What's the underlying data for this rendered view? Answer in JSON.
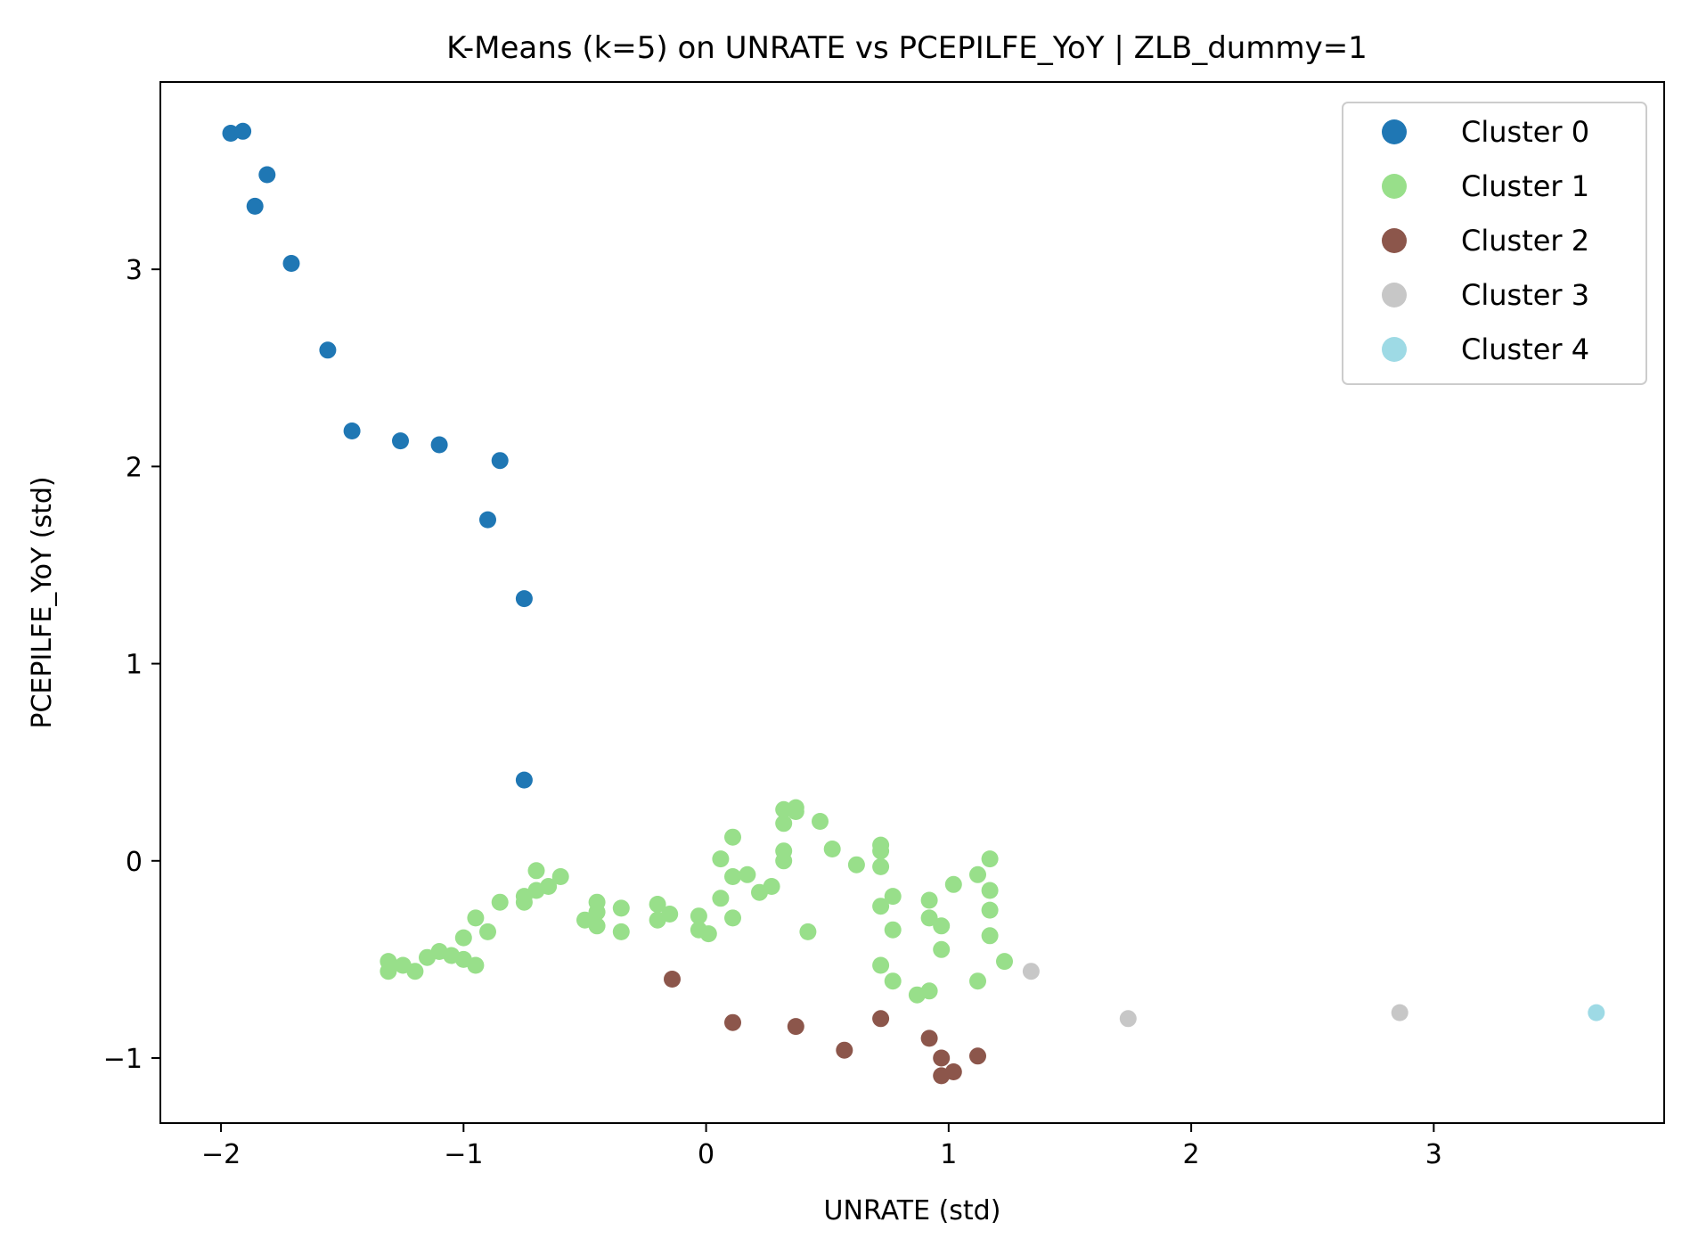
{
  "chart_data": {
    "type": "scatter",
    "title": "K-Means (k=5) on UNRATE vs PCEPILFE_YoY | ZLB_dummy=1",
    "xlabel": "UNRATE (std)",
    "ylabel": "PCEPILFE_YoY (std)",
    "xlim": [
      -2.25,
      3.95
    ],
    "ylim": [
      -1.33,
      3.95
    ],
    "xticks": [
      -2,
      -1,
      0,
      1,
      2,
      3
    ],
    "xtick_labels": [
      "−2",
      "−1",
      "0",
      "1",
      "2",
      "3"
    ],
    "yticks": [
      -1,
      0,
      1,
      2,
      3
    ],
    "ytick_labels": [
      "−1",
      "0",
      "1",
      "2",
      "3"
    ],
    "grid": false,
    "legend_position": "top-right",
    "series": [
      {
        "name": "Cluster 0",
        "color": "#1f77b4",
        "points": [
          [
            -1.96,
            3.69
          ],
          [
            -1.91,
            3.7
          ],
          [
            -1.81,
            3.48
          ],
          [
            -1.86,
            3.32
          ],
          [
            -1.71,
            3.03
          ],
          [
            -1.56,
            2.59
          ],
          [
            -1.46,
            2.18
          ],
          [
            -1.26,
            2.13
          ],
          [
            -1.1,
            2.11
          ],
          [
            -0.85,
            2.03
          ],
          [
            -0.9,
            1.73
          ],
          [
            -0.75,
            1.33
          ],
          [
            -0.75,
            0.41
          ]
        ]
      },
      {
        "name": "Cluster 1",
        "color": "#98df8a",
        "points": [
          [
            -1.31,
            -0.51
          ],
          [
            -1.31,
            -0.56
          ],
          [
            -1.25,
            -0.53
          ],
          [
            -1.2,
            -0.56
          ],
          [
            -1.15,
            -0.49
          ],
          [
            -1.1,
            -0.46
          ],
          [
            -1.05,
            -0.48
          ],
          [
            -1.0,
            -0.5
          ],
          [
            -0.95,
            -0.53
          ],
          [
            -1.0,
            -0.39
          ],
          [
            -0.95,
            -0.29
          ],
          [
            -0.9,
            -0.36
          ],
          [
            -0.85,
            -0.21
          ],
          [
            -0.75,
            -0.21
          ],
          [
            -0.75,
            -0.18
          ],
          [
            -0.7,
            -0.15
          ],
          [
            -0.7,
            -0.05
          ],
          [
            -0.65,
            -0.13
          ],
          [
            -0.6,
            -0.08
          ],
          [
            -0.5,
            -0.3
          ],
          [
            -0.45,
            -0.21
          ],
          [
            -0.45,
            -0.26
          ],
          [
            -0.45,
            -0.33
          ],
          [
            -0.35,
            -0.24
          ],
          [
            -0.35,
            -0.36
          ],
          [
            -0.2,
            -0.22
          ],
          [
            -0.2,
            -0.3
          ],
          [
            -0.15,
            -0.27
          ],
          [
            -0.03,
            -0.28
          ],
          [
            -0.03,
            -0.35
          ],
          [
            0.01,
            -0.37
          ],
          [
            0.06,
            0.01
          ],
          [
            0.06,
            -0.19
          ],
          [
            0.11,
            0.12
          ],
          [
            0.11,
            -0.08
          ],
          [
            0.11,
            -0.29
          ],
          [
            0.17,
            -0.07
          ],
          [
            0.22,
            -0.16
          ],
          [
            0.27,
            -0.13
          ],
          [
            0.32,
            0.26
          ],
          [
            0.32,
            0.19
          ],
          [
            0.32,
            0.05
          ],
          [
            0.32,
            0.0
          ],
          [
            0.37,
            0.27
          ],
          [
            0.37,
            0.25
          ],
          [
            0.42,
            -0.36
          ],
          [
            0.47,
            0.2
          ],
          [
            0.52,
            0.06
          ],
          [
            0.62,
            -0.02
          ],
          [
            0.72,
            0.08
          ],
          [
            0.72,
            0.05
          ],
          [
            0.72,
            -0.03
          ],
          [
            0.72,
            -0.23
          ],
          [
            0.72,
            -0.53
          ],
          [
            0.77,
            -0.18
          ],
          [
            0.77,
            -0.35
          ],
          [
            0.77,
            -0.61
          ],
          [
            0.87,
            -0.68
          ],
          [
            0.92,
            -0.66
          ],
          [
            0.92,
            -0.2
          ],
          [
            0.92,
            -0.29
          ],
          [
            0.97,
            -0.33
          ],
          [
            0.97,
            -0.45
          ],
          [
            1.02,
            -0.12
          ],
          [
            1.12,
            -0.07
          ],
          [
            1.12,
            -0.61
          ],
          [
            1.17,
            0.01
          ],
          [
            1.17,
            -0.15
          ],
          [
            1.17,
            -0.25
          ],
          [
            1.17,
            -0.38
          ],
          [
            1.23,
            -0.51
          ]
        ]
      },
      {
        "name": "Cluster 2",
        "color": "#8c564b",
        "points": [
          [
            -0.14,
            -0.6
          ],
          [
            0.11,
            -0.82
          ],
          [
            0.37,
            -0.84
          ],
          [
            0.57,
            -0.96
          ],
          [
            0.72,
            -0.8
          ],
          [
            0.92,
            -0.9
          ],
          [
            0.97,
            -1.0
          ],
          [
            0.97,
            -1.09
          ],
          [
            1.02,
            -1.07
          ],
          [
            1.12,
            -0.99
          ]
        ]
      },
      {
        "name": "Cluster 3",
        "color": "#c7c7c7",
        "points": [
          [
            1.34,
            -0.56
          ],
          [
            1.74,
            -0.8
          ],
          [
            2.86,
            -0.77
          ]
        ]
      },
      {
        "name": "Cluster 4",
        "color": "#9edae5",
        "points": [
          [
            3.67,
            -0.77
          ]
        ]
      }
    ]
  }
}
